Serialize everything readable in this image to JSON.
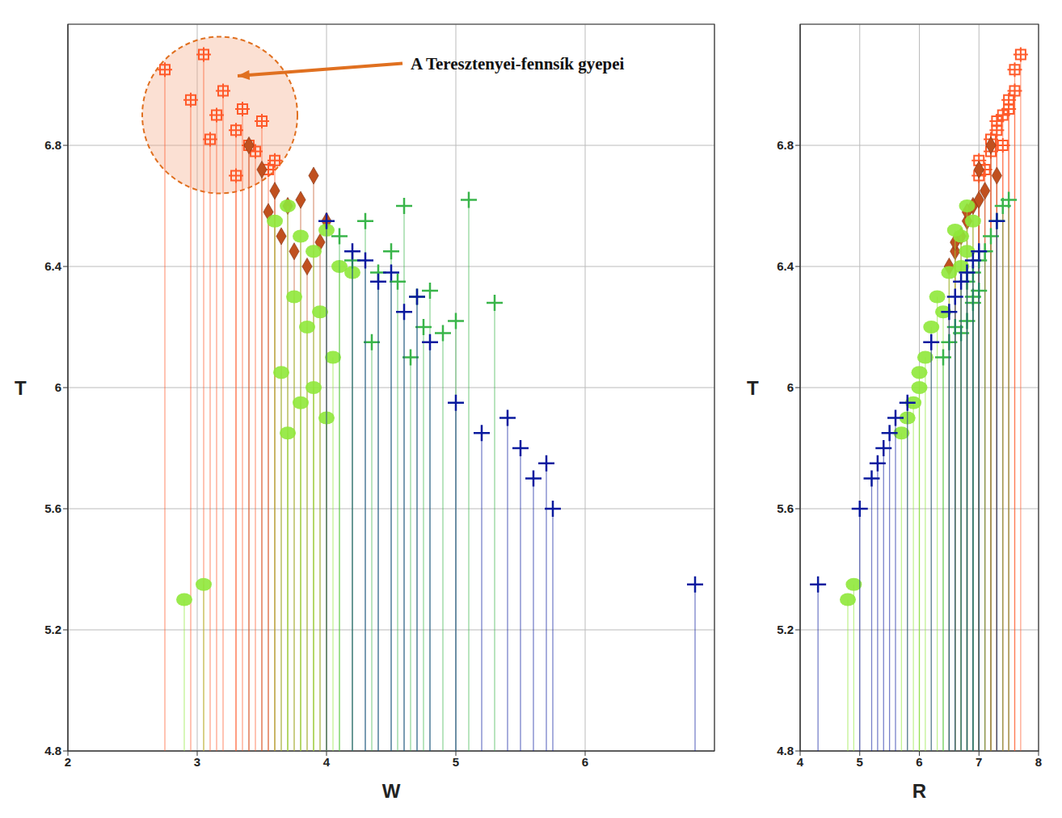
{
  "chart_data": {
    "type": "scatter",
    "x_label": "W",
    "y_label": "T",
    "z_label": "R",
    "xlim": [
      2,
      7
    ],
    "xticks": [
      2,
      3,
      4,
      5,
      6
    ],
    "ylim": [
      4.8,
      7.2
    ],
    "yticks": [
      4.8,
      5.2,
      5.6,
      6,
      6.4,
      6.8
    ],
    "zlim": [
      4,
      8
    ],
    "zticks": [
      4,
      5,
      6,
      7,
      8
    ],
    "grid": true,
    "series": [
      {
        "color": "#ff5a2a",
        "marker": "square_cross",
        "annotation": "A Teresztenyei-fennsík gyepei",
        "x": [
          2.75,
          2.95,
          3.05,
          3.15,
          3.2,
          3.3,
          3.35,
          3.4,
          3.45,
          3.5,
          3.55,
          3.3,
          3.1,
          3.6
        ],
        "z": [
          7.6,
          7.5,
          7.7,
          7.4,
          7.6,
          7.3,
          7.5,
          7.4,
          7.2,
          7.3,
          7.1,
          7.0,
          7.2,
          7.0
        ],
        "y": [
          7.05,
          6.95,
          7.1,
          6.9,
          6.98,
          6.85,
          6.92,
          6.8,
          6.78,
          6.88,
          6.72,
          6.7,
          6.82,
          6.75
        ]
      },
      {
        "color": "#c0501f",
        "marker": "diamond",
        "x": [
          3.4,
          3.5,
          3.6,
          3.7,
          3.8,
          3.9,
          4.0,
          3.65,
          3.75,
          3.55,
          3.85,
          3.95
        ],
        "z": [
          7.2,
          7.0,
          7.1,
          6.9,
          7.0,
          7.3,
          6.8,
          6.7,
          6.6,
          6.8,
          6.5,
          6.6
        ],
        "y": [
          6.8,
          6.72,
          6.65,
          6.6,
          6.62,
          6.7,
          6.55,
          6.5,
          6.45,
          6.58,
          6.4,
          6.48
        ]
      },
      {
        "color": "#8fe83a",
        "marker": "ellipse",
        "x": [
          3.6,
          3.7,
          3.8,
          3.9,
          4.0,
          4.1,
          4.2,
          3.75,
          3.85,
          3.95,
          4.05,
          3.65,
          3.8,
          3.9,
          4.0,
          3.7,
          2.9,
          3.05
        ],
        "z": [
          6.9,
          6.8,
          6.7,
          6.8,
          6.6,
          6.7,
          6.5,
          6.3,
          6.2,
          6.4,
          6.1,
          6.0,
          5.9,
          6.0,
          5.8,
          5.7,
          4.8,
          4.9
        ],
        "y": [
          6.55,
          6.6,
          6.5,
          6.45,
          6.52,
          6.4,
          6.38,
          6.3,
          6.2,
          6.25,
          6.1,
          6.05,
          5.95,
          6.0,
          5.9,
          5.85,
          5.3,
          5.35
        ]
      },
      {
        "color": "#39b54a",
        "marker": "plus",
        "x": [
          4.1,
          4.2,
          4.3,
          4.4,
          4.5,
          4.55,
          4.6,
          4.7,
          4.75,
          4.8,
          4.9,
          5.0,
          5.1,
          5.3,
          4.35,
          4.65
        ],
        "z": [
          7.2,
          7.0,
          7.3,
          6.9,
          7.1,
          6.8,
          7.4,
          6.9,
          6.6,
          7.0,
          6.7,
          6.8,
          7.5,
          6.9,
          6.5,
          6.4
        ],
        "y": [
          6.5,
          6.42,
          6.55,
          6.38,
          6.45,
          6.35,
          6.6,
          6.3,
          6.2,
          6.32,
          6.18,
          6.22,
          6.62,
          6.28,
          6.15,
          6.1
        ]
      },
      {
        "color": "#0a1a9e",
        "marker": "plus",
        "x": [
          4.0,
          4.2,
          4.3,
          4.4,
          4.5,
          4.6,
          4.7,
          4.8,
          5.0,
          5.2,
          5.4,
          5.5,
          5.6,
          5.7,
          5.75,
          6.85
        ],
        "z": [
          7.3,
          7.0,
          6.9,
          6.7,
          6.8,
          6.5,
          6.6,
          6.2,
          5.8,
          5.5,
          5.6,
          5.4,
          5.2,
          5.3,
          5.0,
          4.3
        ],
        "y": [
          6.55,
          6.45,
          6.42,
          6.35,
          6.38,
          6.25,
          6.3,
          6.15,
          5.95,
          5.85,
          5.9,
          5.8,
          5.7,
          5.75,
          5.6,
          5.35
        ]
      }
    ]
  }
}
